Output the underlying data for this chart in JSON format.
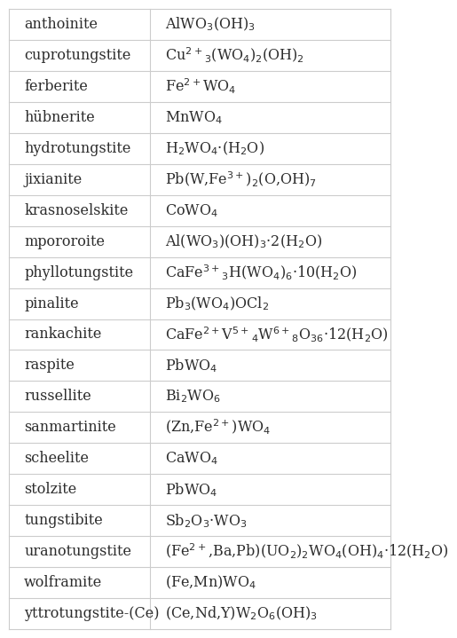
{
  "rows": [
    [
      "anthoinite",
      "AlWO$_3$(OH)$_3$"
    ],
    [
      "cuprotungstite",
      "Cu$^{2+}$$_3$(WO$_4$)$_2$(OH)$_2$"
    ],
    [
      "ferberite",
      "Fe$^{2+}$WO$_4$"
    ],
    [
      "hübnerite",
      "MnWO$_4$"
    ],
    [
      "hydrotungstite",
      "H$_2$WO$_4$·(H$_2$O)"
    ],
    [
      "jixianite",
      "Pb(W,Fe$^{3+}$)$_2$(O,OH)$_7$"
    ],
    [
      "krasnoselskite",
      "CoWO$_4$"
    ],
    [
      "mpororoite",
      "Al(WO$_3$)(OH)$_3$·2(H$_2$O)"
    ],
    [
      "phyllotungstite",
      "CaFe$^{3+}$$_3$H(WO$_4$)$_6$·10(H$_2$O)"
    ],
    [
      "pinalite",
      "Pb$_3$(WO$_4$)OCl$_2$"
    ],
    [
      "rankachite",
      "CaFe$^{2+}$V$^{5+}$$_4$W$^{6+}$$_8$O$_{36}$·12(H$_2$O)"
    ],
    [
      "raspite",
      "PbWO$_4$"
    ],
    [
      "russellite",
      "Bi$_2$WO$_6$"
    ],
    [
      "sanmartinite",
      "(Zn,Fe$^{2+}$)WO$_4$"
    ],
    [
      "scheelite",
      "CaWO$_4$"
    ],
    [
      "stolzite",
      "PbWO$_4$"
    ],
    [
      "tungstibite",
      "Sb$_2$O$_3$·WO$_3$"
    ],
    [
      "uranotungstite",
      "(Fe$^{2+}$,Ba,Pb)(UO$_2$)$_2$WO$_4$(OH)$_4$·12(H$_2$O)"
    ],
    [
      "wolframite",
      "(Fe,Mn)WO$_4$"
    ],
    [
      "yttrotungstite-(Ce)",
      "(Ce,Nd,Y)W$_2$O$_6$(OH)$_3$"
    ]
  ],
  "col_split": 0.37,
  "bg_color": "#ffffff",
  "line_color": "#cccccc",
  "text_color": "#2c2c2c",
  "font_size": 11.5,
  "fig_width": 4.3,
  "fig_height": 6.99
}
